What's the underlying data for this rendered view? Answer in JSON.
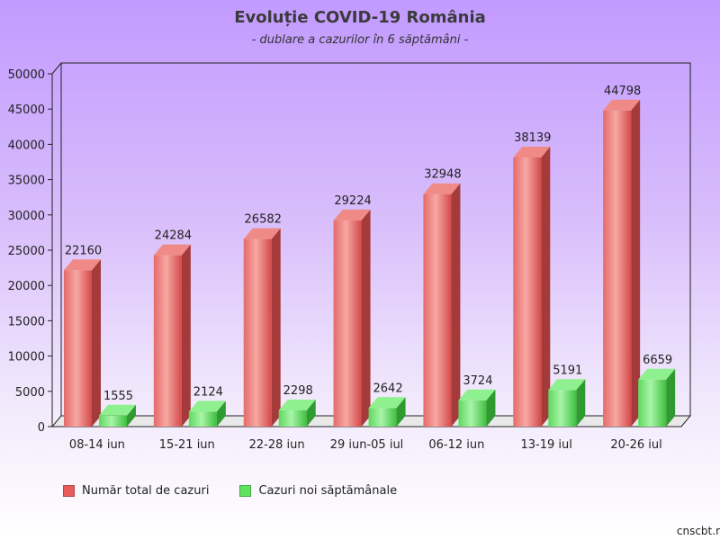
{
  "chart_data": {
    "type": "bar",
    "title": "Evoluție COVID-19 România",
    "subtitle": "- dublare a cazurilor în 6 săptămâni -",
    "categories": [
      "08-14 iun",
      "15-21 iun",
      "22-28 iun",
      "29 iun-05 iul",
      "06-12 iun",
      "13-19 iul",
      "20-26 iul"
    ],
    "series": [
      {
        "name": "Număr total de cazuri",
        "color": "#e85c5c",
        "values": [
          22160,
          24284,
          26582,
          29224,
          32948,
          38139,
          44798
        ]
      },
      {
        "name": "Cazuri noi săptămânale",
        "color": "#5fe35f",
        "values": [
          1555,
          2124,
          2298,
          2642,
          3724,
          5191,
          6659
        ]
      }
    ],
    "ylim": [
      0,
      50000
    ],
    "yticks": [
      "0",
      "5000",
      "10000",
      "15000",
      "20000",
      "25000",
      "30000",
      "35000",
      "40000",
      "45000",
      "50000"
    ],
    "grid": false,
    "legend_position": "bottom-left",
    "style": "3d-bars"
  },
  "source": "cnscbt.r"
}
